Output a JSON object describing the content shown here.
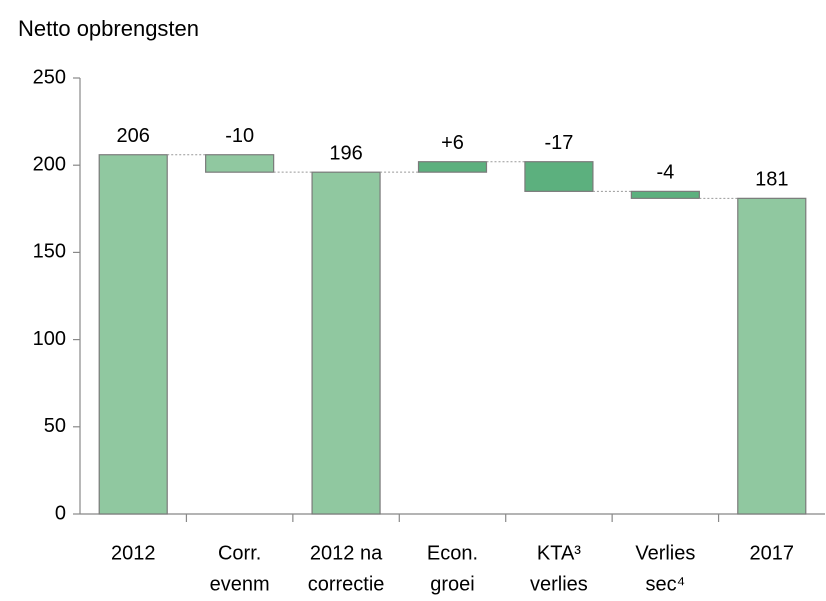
{
  "chart_data": {
    "type": "waterfall",
    "title": "Netto opbrengsten",
    "categories": [
      [
        "2012"
      ],
      [
        "Corr.",
        "evenm"
      ],
      [
        "2012 na",
        "correctie"
      ],
      [
        "Econ.",
        "groei"
      ],
      [
        "KTA³",
        "verlies"
      ],
      [
        "Verlies",
        "sec⁴"
      ],
      [
        "2017"
      ]
    ],
    "measure": [
      "absolute",
      "relative",
      "absolute",
      "relative",
      "relative",
      "relative",
      "absolute"
    ],
    "values": [
      206,
      -10,
      196,
      6,
      -17,
      -4,
      181
    ],
    "value_labels": [
      "206",
      "-10",
      "196",
      "+6",
      "-17",
      "-4",
      "181"
    ],
    "colors": [
      "#90c8a0",
      "#90c8a0",
      "#90c8a0",
      "#5cb07e",
      "#5cb07e",
      "#5cb07e",
      "#90c8a0"
    ],
    "ylim": [
      0,
      250
    ],
    "yticks": [
      0,
      50,
      100,
      150,
      200,
      250
    ],
    "grid": false
  }
}
